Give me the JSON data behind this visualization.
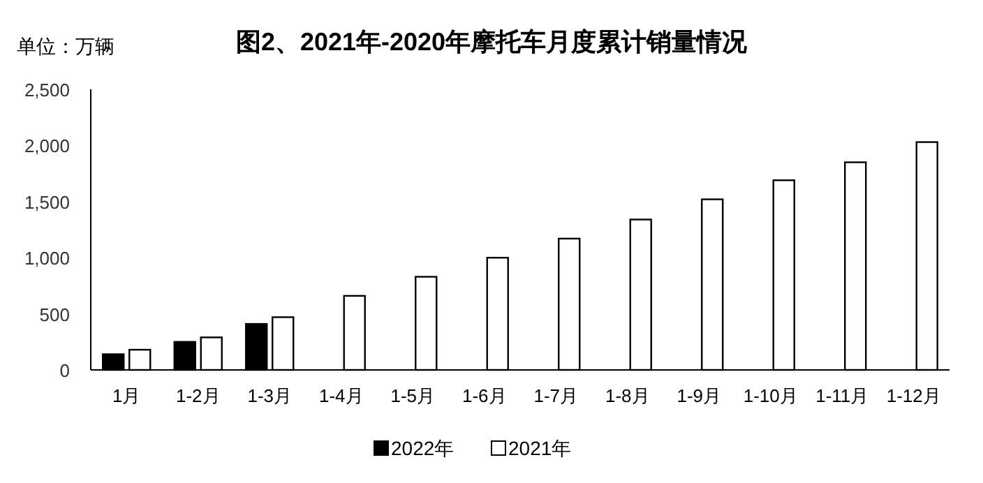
{
  "chart_data": {
    "type": "bar",
    "title": "图2、2021年-2020年摩托车月度累计销量情况",
    "annotations": [
      "单位：万辆"
    ],
    "categories": [
      "1月",
      "1-2月",
      "1-3月",
      "1-4月",
      "1-5月",
      "1-6月",
      "1-7月",
      "1-8月",
      "1-9月",
      "1-10月",
      "1-11月",
      "1-12月"
    ],
    "series": [
      {
        "name": "2022年",
        "color": "#000000",
        "values": [
          140,
          250,
          410,
          null,
          null,
          null,
          null,
          null,
          null,
          null,
          null,
          null
        ]
      },
      {
        "name": "2021年",
        "color": "#ffffff",
        "values": [
          180,
          290,
          470,
          660,
          830,
          1000,
          1170,
          1340,
          1520,
          1690,
          1850,
          2030
        ]
      }
    ],
    "ylim": [
      0,
      2500
    ],
    "yticks": [
      0,
      500,
      {
        "value": 1000,
        "label": "1,000"
      },
      {
        "value": 1500,
        "label": "1,500"
      },
      {
        "value": 2000,
        "label": "2,000"
      },
      {
        "value": 2500,
        "label": "2,500"
      }
    ],
    "grid": false,
    "legend": "bottom"
  }
}
